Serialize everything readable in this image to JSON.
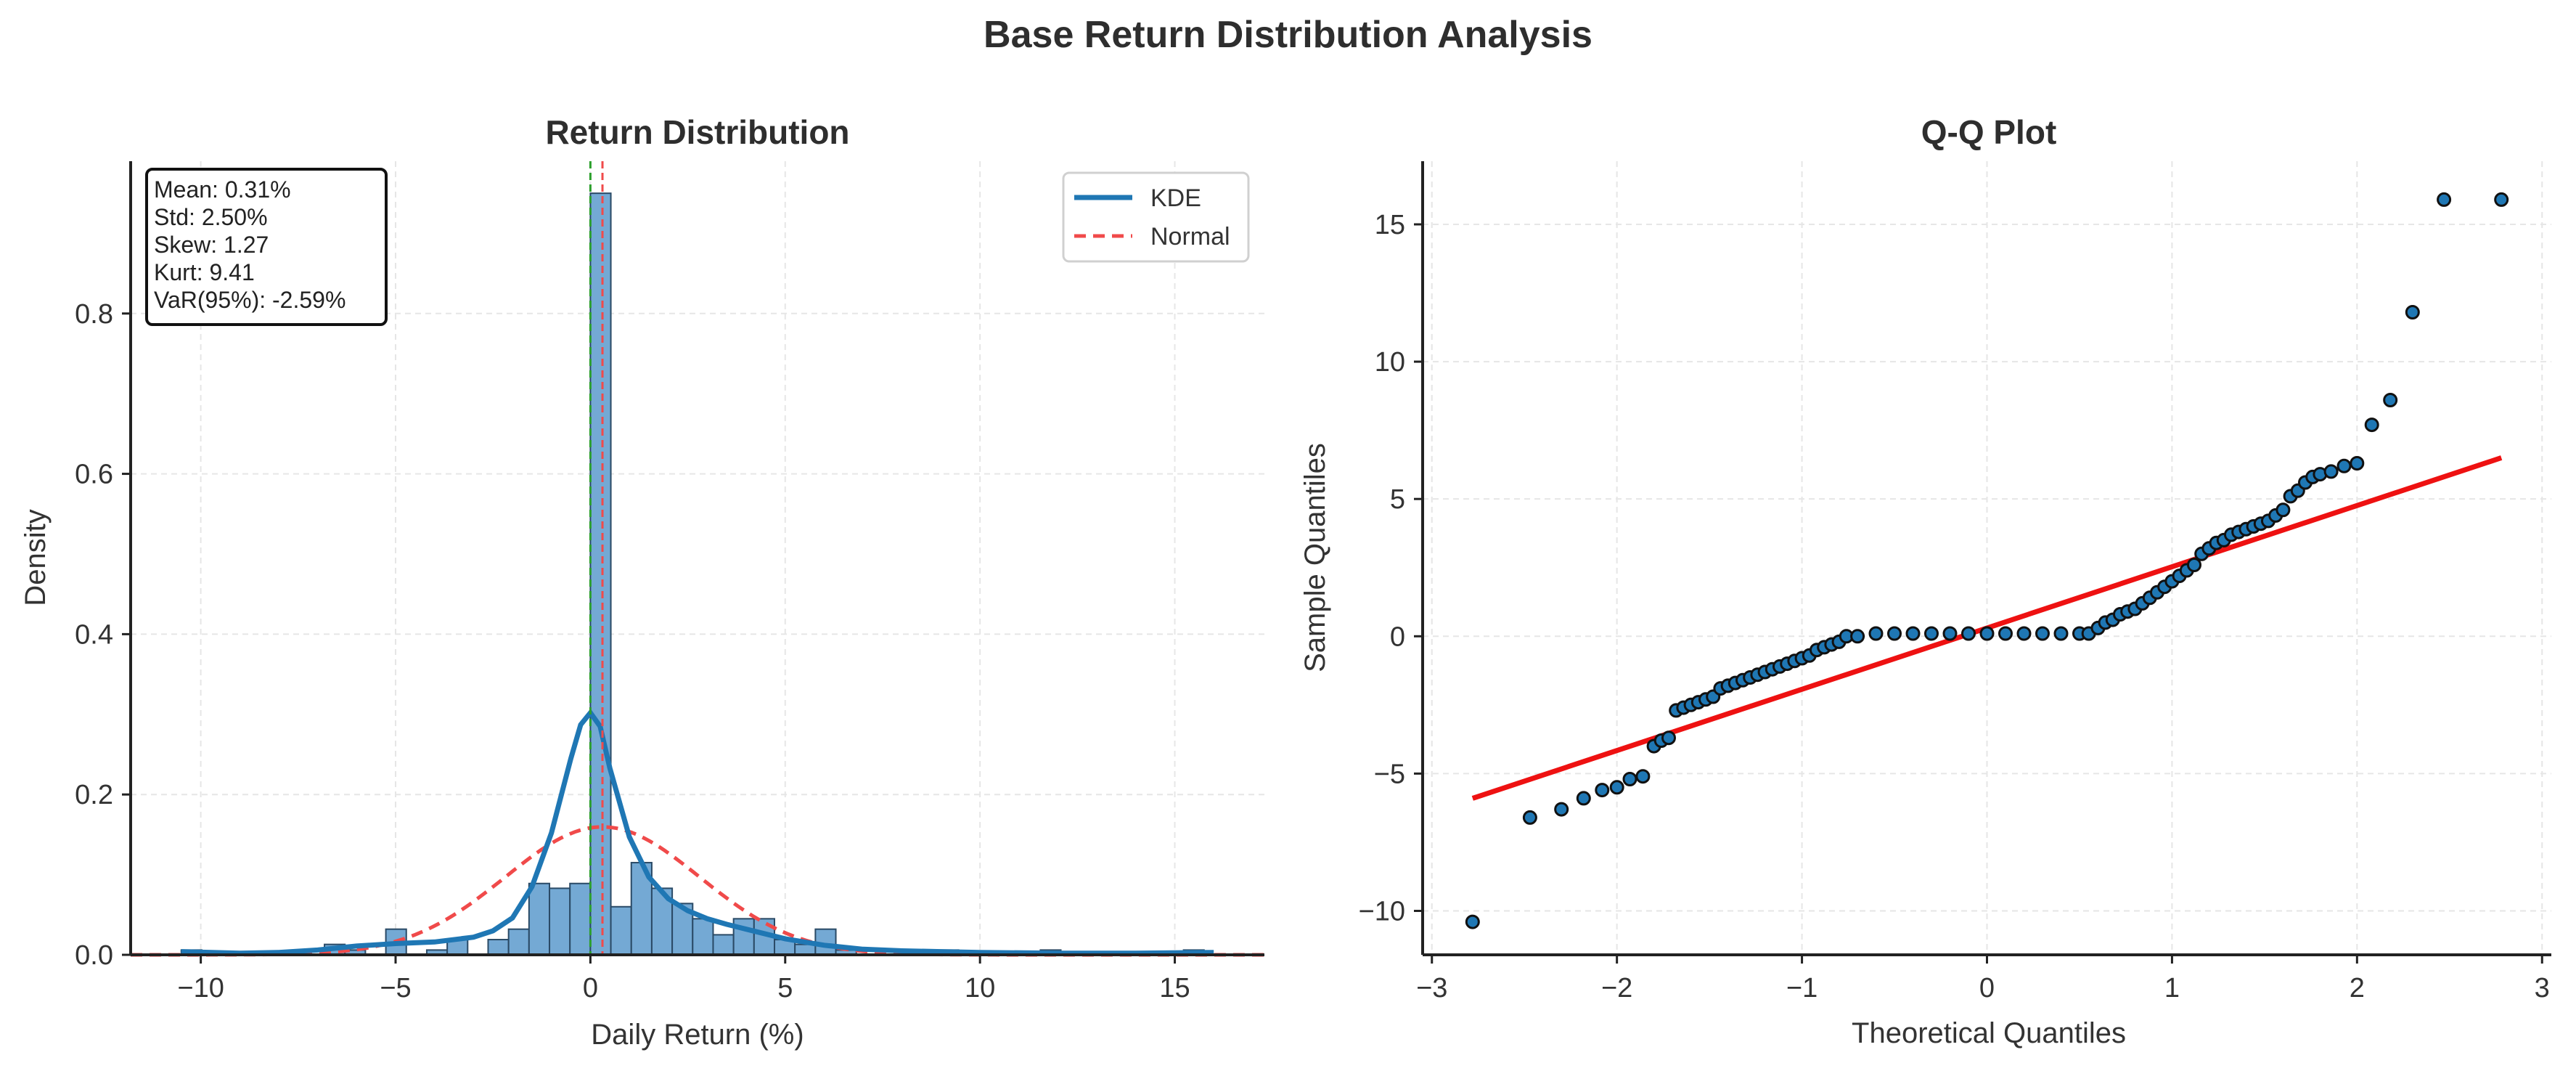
{
  "figure": {
    "title": "Base Return Distribution Analysis"
  },
  "colors": {
    "histogram": "#74a9d4",
    "kde": "#1f77b4",
    "normal": "#f04a4a",
    "mean_line": "#f04a4a",
    "median_line": "#2ca02c",
    "qq_point": "#1f77b4",
    "qq_line": "#ee1111"
  },
  "chart_data": [
    {
      "type": "bar",
      "title": "Return Distribution",
      "xlabel": "Daily Return (%)",
      "ylabel": "Density",
      "xlim": [
        -11.8,
        17.3
      ],
      "ylim": [
        0,
        0.99
      ],
      "xticks": [
        -10,
        -5,
        0,
        5,
        10,
        15
      ],
      "yticks": [
        0.0,
        0.2,
        0.4,
        0.6,
        0.8
      ],
      "xtick_labels": [
        "−10",
        "−5",
        "0",
        "5",
        "10",
        "15"
      ],
      "ytick_labels": [
        "0.0",
        "0.2",
        "0.4",
        "0.6",
        "0.8"
      ],
      "grid": true,
      "legend_position": "top-right",
      "bin_edges": [
        -10.5,
        -9.975,
        -9.45,
        -8.925,
        -8.4,
        -7.875,
        -7.35,
        -6.825,
        -6.3,
        -5.775,
        -5.25,
        -4.725,
        -4.2,
        -3.675,
        -3.15,
        -2.625,
        -2.1,
        -1.575,
        -1.05,
        -0.525,
        0.0,
        0.525,
        1.05,
        1.575,
        2.1,
        2.625,
        3.15,
        3.675,
        4.2,
        4.725,
        5.25,
        5.775,
        6.3,
        6.825,
        7.35,
        7.875,
        8.4,
        8.925,
        9.45,
        9.975,
        10.5,
        11.025,
        11.55,
        12.075,
        12.6,
        13.125,
        13.65,
        14.175,
        14.7,
        15.225,
        15.75
      ],
      "densities": [
        0.006,
        0.0,
        0.0,
        0.0,
        0.0,
        0.0,
        0.0,
        0.013,
        0.006,
        0.0,
        0.032,
        0.0,
        0.006,
        0.019,
        0.0,
        0.019,
        0.032,
        0.089,
        0.083,
        0.089,
        0.95,
        0.06,
        0.115,
        0.083,
        0.064,
        0.045,
        0.025,
        0.045,
        0.045,
        0.019,
        0.013,
        0.032,
        0.006,
        0.0,
        0.0,
        0.0,
        0.0,
        0.006,
        0.0,
        0.0,
        0.0,
        0.0,
        0.006,
        0.0,
        0.0,
        0.0,
        0.0,
        0.0,
        0.0,
        0.006
      ],
      "series": [
        {
          "name": "KDE",
          "style": "solid",
          "x": [
            -10.5,
            -9,
            -8,
            -7,
            -6,
            -5,
            -4,
            -3,
            -2.5,
            -2,
            -1.5,
            -1,
            -0.5,
            -0.25,
            0,
            0.25,
            0.5,
            1,
            1.5,
            2,
            2.5,
            3,
            3.5,
            4,
            4.5,
            5,
            6,
            7,
            8,
            9,
            10,
            12,
            14,
            16
          ],
          "y": [
            0.004,
            0.002,
            0.003,
            0.006,
            0.011,
            0.014,
            0.016,
            0.022,
            0.03,
            0.046,
            0.085,
            0.152,
            0.245,
            0.287,
            0.302,
            0.285,
            0.233,
            0.147,
            0.097,
            0.07,
            0.055,
            0.045,
            0.038,
            0.032,
            0.026,
            0.02,
            0.012,
            0.007,
            0.005,
            0.004,
            0.003,
            0.002,
            0.002,
            0.003
          ]
        },
        {
          "name": "Normal",
          "style": "dashed",
          "mean": 0.31,
          "std": 2.5
        }
      ],
      "vlines": [
        {
          "role": "mean",
          "x": 0.31,
          "color": "#f04a4a"
        },
        {
          "role": "median",
          "x": 0.0,
          "color": "#2ca02c"
        }
      ],
      "stats_box": [
        "Mean: 0.31%",
        "Std: 2.50%",
        "Skew: 1.27",
        "Kurt: 9.41",
        "VaR(95%): -2.59%"
      ]
    },
    {
      "type": "scatter",
      "title": "Q-Q Plot",
      "xlabel": "Theoretical Quantiles",
      "ylabel": "Sample Quantiles",
      "xlim": [
        -3.05,
        3.05
      ],
      "ylim": [
        -11.6,
        17.3
      ],
      "xticks": [
        -3,
        -2,
        -1,
        0,
        1,
        2,
        3
      ],
      "yticks": [
        -10,
        -5,
        0,
        5,
        10,
        15
      ],
      "xtick_labels": [
        "−3",
        "−2",
        "−1",
        "0",
        "1",
        "2",
        "3"
      ],
      "ytick_labels": [
        "−10",
        "−5",
        "0",
        "5",
        "10",
        "15"
      ],
      "grid": true,
      "fit_line": {
        "x": [
          -2.78,
          2.78
        ],
        "y": [
          -5.9,
          6.5
        ]
      },
      "x": [
        -2.78,
        -2.47,
        -2.3,
        -2.18,
        -2.08,
        -2.0,
        -1.93,
        -1.86,
        -1.8,
        -1.76,
        -1.72,
        -1.68,
        -1.64,
        -1.6,
        -1.56,
        -1.52,
        -1.48,
        -1.44,
        -1.4,
        -1.36,
        -1.32,
        -1.28,
        -1.24,
        -1.2,
        -1.16,
        -1.12,
        -1.08,
        -1.04,
        -1.0,
        -0.96,
        -0.92,
        -0.88,
        -0.84,
        -0.8,
        -0.76,
        -0.7,
        -0.6,
        -0.5,
        -0.4,
        -0.3,
        -0.2,
        -0.1,
        0.0,
        0.1,
        0.2,
        0.3,
        0.4,
        0.5,
        0.55,
        0.6,
        0.64,
        0.68,
        0.72,
        0.76,
        0.8,
        0.84,
        0.88,
        0.92,
        0.96,
        1.0,
        1.04,
        1.08,
        1.12,
        1.16,
        1.2,
        1.24,
        1.28,
        1.32,
        1.36,
        1.4,
        1.44,
        1.48,
        1.52,
        1.56,
        1.6,
        1.64,
        1.68,
        1.72,
        1.76,
        1.8,
        1.86,
        1.93,
        2.0,
        2.08,
        2.18,
        2.3,
        2.47,
        2.78
      ],
      "y": [
        -10.4,
        -6.6,
        -6.3,
        -5.9,
        -5.6,
        -5.5,
        -5.2,
        -5.1,
        -4.0,
        -3.8,
        -3.7,
        -2.7,
        -2.6,
        -2.5,
        -2.4,
        -2.3,
        -2.2,
        -1.9,
        -1.8,
        -1.7,
        -1.6,
        -1.5,
        -1.4,
        -1.3,
        -1.2,
        -1.1,
        -1.0,
        -0.9,
        -0.8,
        -0.7,
        -0.5,
        -0.4,
        -0.3,
        -0.2,
        0.0,
        0.0,
        0.1,
        0.1,
        0.1,
        0.1,
        0.1,
        0.1,
        0.1,
        0.1,
        0.1,
        0.1,
        0.1,
        0.1,
        0.1,
        0.3,
        0.5,
        0.6,
        0.8,
        0.9,
        1.0,
        1.2,
        1.4,
        1.6,
        1.8,
        2.0,
        2.2,
        2.4,
        2.6,
        3.0,
        3.2,
        3.4,
        3.5,
        3.7,
        3.8,
        3.9,
        4.0,
        4.1,
        4.2,
        4.4,
        4.6,
        5.1,
        5.3,
        5.6,
        5.8,
        5.9,
        6.0,
        6.2,
        6.3,
        7.7,
        8.6,
        11.8,
        15.9,
        15.9
      ]
    }
  ]
}
